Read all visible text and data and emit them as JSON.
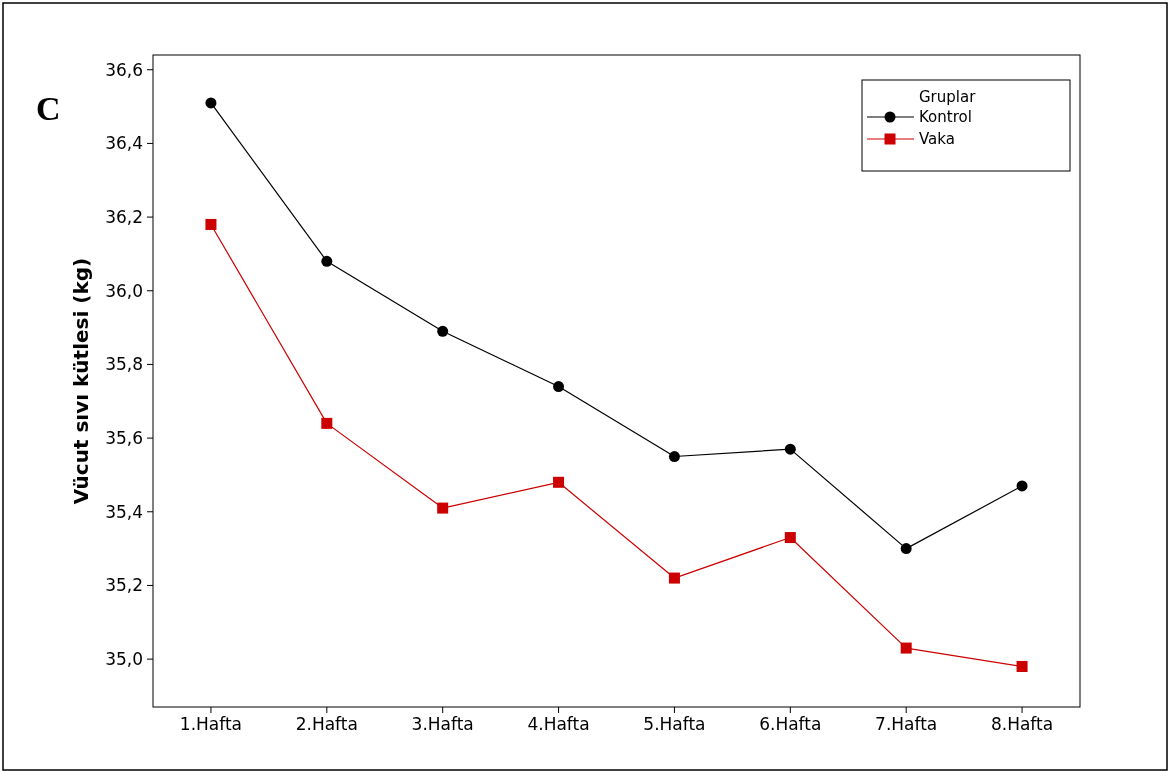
{
  "chart_data": {
    "type": "line",
    "title": "C",
    "ylabel": "Vücut sıvı kütlesi (kg)",
    "legend_title": "Gruplar",
    "legend": "top right",
    "grid": false,
    "categories": [
      "1.Hafta",
      "2.Hafta",
      "3.Hafta",
      "4.Hafta",
      "5.Hafta",
      "6.Hafta",
      "7.Hafta",
      "8.Hafta"
    ],
    "series": [
      {
        "name": "Kontrol",
        "color": "#000000",
        "marker": "circle",
        "values": [
          36.51,
          36.08,
          35.89,
          35.74,
          35.55,
          35.57,
          35.3,
          35.47
        ]
      },
      {
        "name": "Vaka",
        "color": "#cc0000",
        "marker": "square",
        "values": [
          36.18,
          35.64,
          35.41,
          35.48,
          35.22,
          35.33,
          35.03,
          34.98
        ]
      }
    ],
    "ylim": [
      34.87,
      36.64
    ],
    "yticks": [
      {
        "value": 35.0,
        "label": "35,0"
      },
      {
        "value": 35.2,
        "label": "35,2"
      },
      {
        "value": 35.4,
        "label": "35,4"
      },
      {
        "value": 35.6,
        "label": "35,6"
      },
      {
        "value": 35.8,
        "label": "35,8"
      },
      {
        "value": 36.0,
        "label": "36,0"
      },
      {
        "value": 36.2,
        "label": "36,2"
      },
      {
        "value": 36.4,
        "label": "36,4"
      },
      {
        "value": 36.6,
        "label": "36,6"
      }
    ]
  }
}
